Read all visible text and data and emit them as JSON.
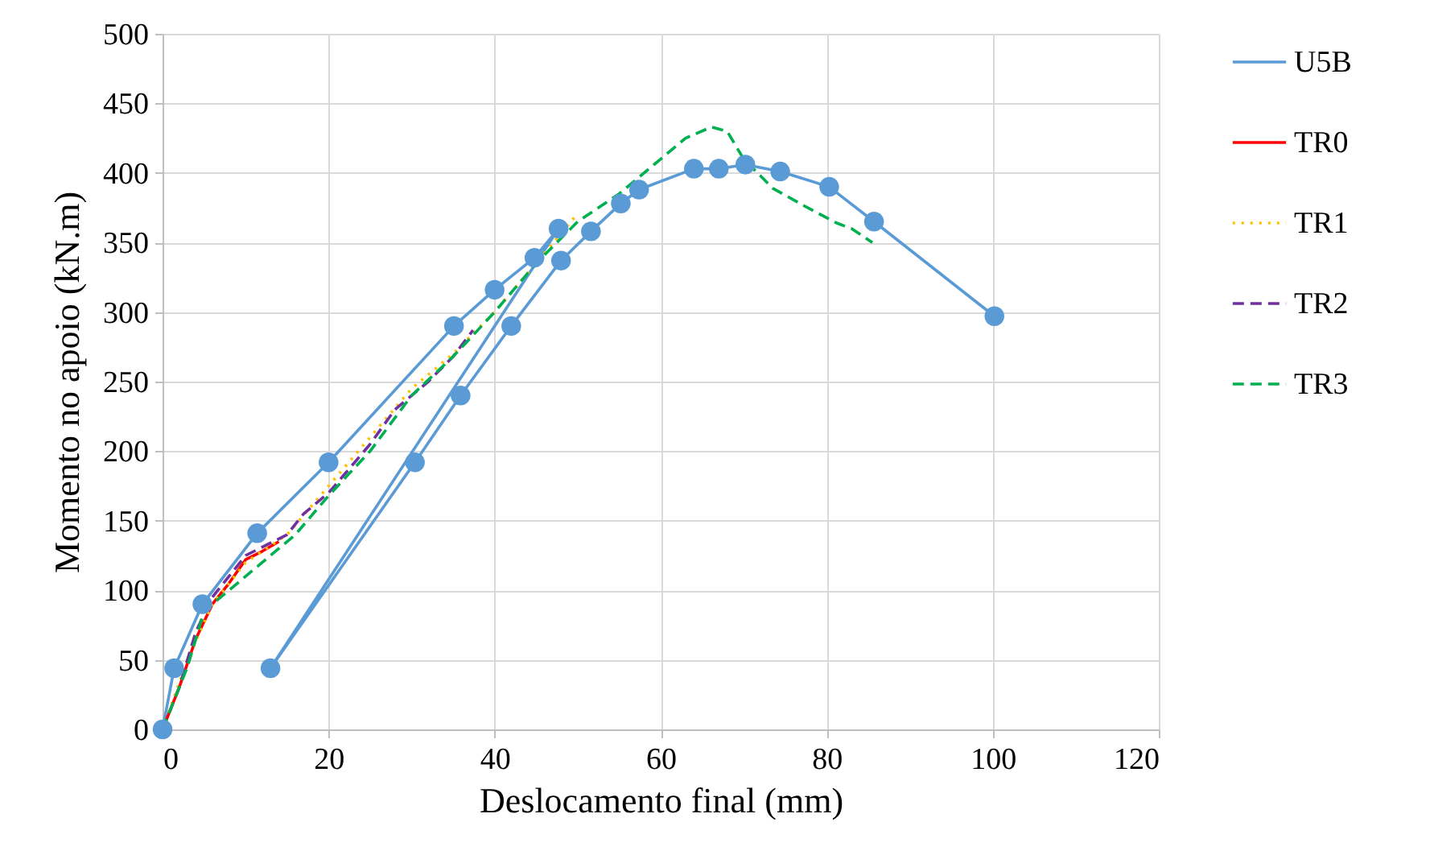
{
  "chart_data": {
    "type": "line",
    "xlabel": "Deslocamento final (mm)",
    "ylabel": "Momento no apoio (kN.m)",
    "xlim": [
      0,
      120
    ],
    "xticks": [
      0,
      20,
      40,
      60,
      80,
      100,
      120
    ],
    "ylim": [
      0,
      500
    ],
    "yticks": [
      0,
      50,
      100,
      150,
      200,
      250,
      300,
      350,
      400,
      450,
      500
    ],
    "grid": true,
    "legend": "right",
    "series": [
      {
        "name": "U5B",
        "color": "#5b9bd5",
        "marker": "circle",
        "line_style": "solid",
        "x": [
          0,
          1.4,
          4.8,
          11.4,
          20,
          35.1,
          40,
          44.8,
          47.7,
          13,
          30.4,
          35.9,
          42,
          48,
          51.6,
          55.2,
          57.4,
          64,
          67,
          70.2,
          74.4,
          80.3,
          85.7,
          100.2
        ],
        "values": [
          0,
          44,
          90,
          141,
          192,
          290,
          316,
          339,
          360,
          44,
          192,
          240,
          290,
          337,
          358,
          378,
          388,
          403,
          403,
          406,
          401,
          390,
          365,
          297
        ]
      },
      {
        "name": "TR0",
        "color": "#ff0000",
        "marker": "none",
        "line_style": "solid",
        "x": [
          0,
          2,
          4,
          6,
          8,
          10,
          12,
          14
        ],
        "values": [
          0,
          30,
          65,
          90,
          105,
          122,
          128,
          135
        ]
      },
      {
        "name": "TR1",
        "color": "#ffc000",
        "marker": "none",
        "line_style": "dotted",
        "x": [
          0,
          3,
          6,
          10,
          15,
          20,
          25,
          30,
          35,
          40,
          45,
          49.6
        ],
        "values": [
          0,
          50,
          90,
          120,
          140,
          175,
          210,
          245,
          270,
          300,
          335,
          368
        ]
      },
      {
        "name": "TR2",
        "color": "#7030a0",
        "marker": "none",
        "line_style": "dashed",
        "x": [
          0,
          2,
          4,
          6,
          8,
          10,
          15,
          17,
          20,
          25,
          28,
          32,
          35,
          37.4
        ],
        "values": [
          0,
          30,
          70,
          95,
          110,
          125,
          140,
          155,
          170,
          205,
          230,
          250,
          268,
          287
        ]
      },
      {
        "name": "TR3",
        "color": "#00b050",
        "marker": "none",
        "line_style": "dashed",
        "x": [
          0,
          3,
          5,
          8,
          12,
          16,
          20,
          25,
          30,
          35,
          40,
          45,
          50,
          55,
          60,
          63,
          66.1,
          68,
          70,
          73.5,
          77.4,
          81.2,
          83,
          85.5
        ],
        "values": [
          0,
          45,
          85,
          100,
          120,
          140,
          168,
          200,
          240,
          268,
          300,
          335,
          365,
          385,
          410,
          425,
          433,
          430,
          410,
          389,
          376,
          364,
          360,
          350
        ]
      }
    ]
  }
}
